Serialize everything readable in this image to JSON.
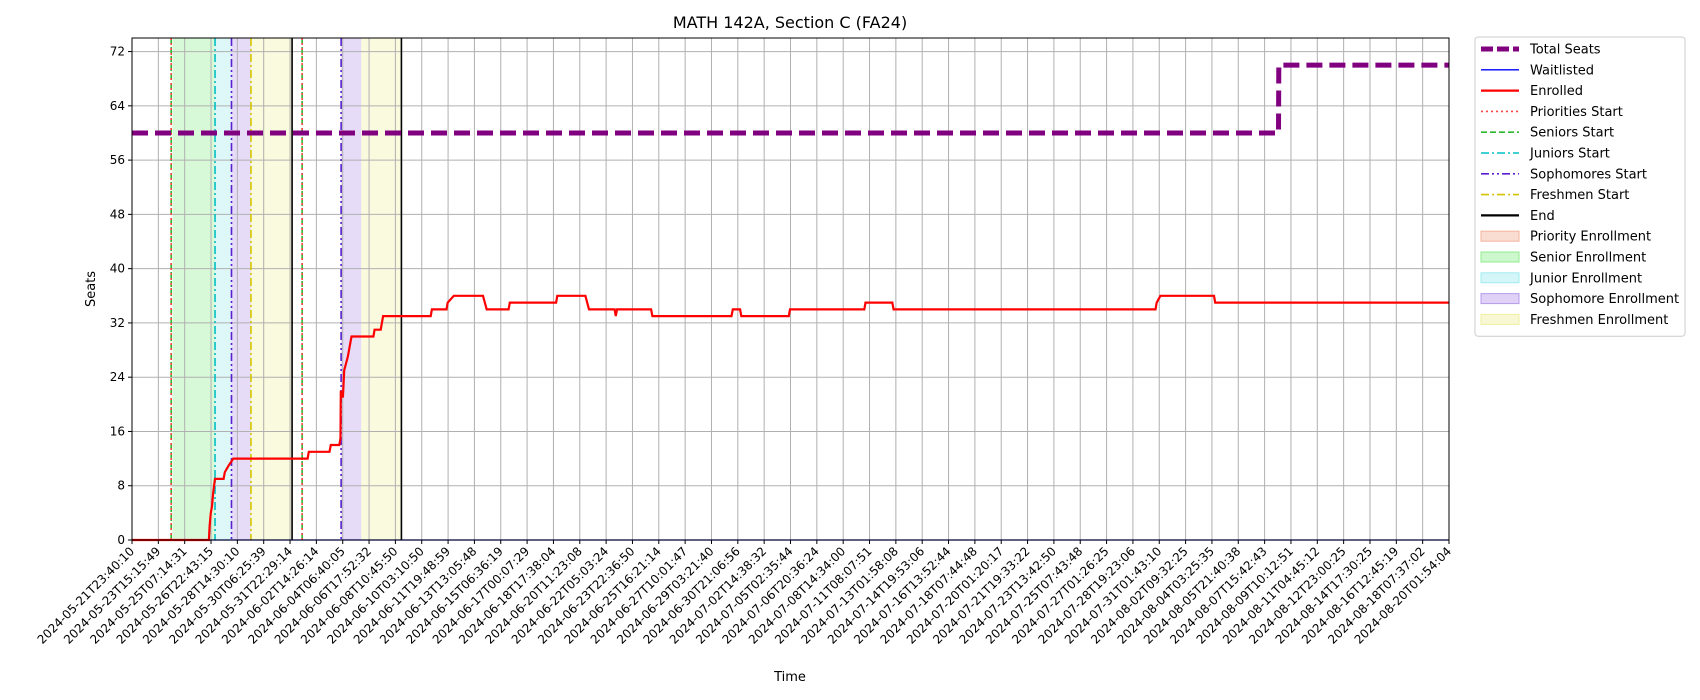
{
  "chart_data": {
    "type": "line",
    "title": "MATH 142A, Section C (FA24)",
    "xlabel": "Time",
    "ylabel": "Seats",
    "xlim": [
      "2024-05-21T23:40:10",
      "2024-08-20T01:54:04"
    ],
    "ylim": [
      0,
      74
    ],
    "yticks": [
      0,
      8,
      16,
      24,
      32,
      40,
      48,
      56,
      64,
      72
    ],
    "xtick_labels": [
      "2024-05-21T23:40:10",
      "2024-05-23T15:15:49",
      "2024-05-25T07:14:31",
      "2024-05-26T22:43:15",
      "2024-05-28T14:30:10",
      "2024-05-30T06:25:39",
      "2024-05-31T22:29:14",
      "2024-06-02T14:26:14",
      "2024-06-04T06:40:05",
      "2024-06-06T17:52:32",
      "2024-06-08T10:45:50",
      "2024-06-10T03:10:50",
      "2024-06-11T19:48:59",
      "2024-06-13T13:05:48",
      "2024-06-15T06:36:19",
      "2024-06-17T00:07:29",
      "2024-06-18T17:38:04",
      "2024-06-20T11:23:08",
      "2024-06-22T05:03:24",
      "2024-06-23T22:36:50",
      "2024-06-25T16:21:14",
      "2024-06-27T10:01:47",
      "2024-06-29T03:21:40",
      "2024-06-30T21:06:56",
      "2024-07-02T14:38:32",
      "2024-07-05T02:35:44",
      "2024-07-06T20:36:24",
      "2024-07-08T14:34:00",
      "2024-07-11T08:07:51",
      "2024-07-13T01:58:08",
      "2024-07-14T19:53:06",
      "2024-07-16T13:52:44",
      "2024-07-18T07:44:48",
      "2024-07-20T01:20:17",
      "2024-07-21T19:33:22",
      "2024-07-23T13:42:50",
      "2024-07-25T07:43:48",
      "2024-07-27T01:26:25",
      "2024-07-28T19:23:06",
      "2024-07-31T01:43:10",
      "2024-08-02T09:32:25",
      "2024-08-04T03:25:35",
      "2024-08-05T21:40:38",
      "2024-08-07T15:42:43",
      "2024-08-09T10:12:51",
      "2024-08-11T04:45:12",
      "2024-08-12T23:00:25",
      "2024-08-14T17:30:25",
      "2024-08-16T12:45:19",
      "2024-08-18T07:37:02",
      "2024-08-20T01:54:04"
    ],
    "grid": true,
    "legend_placement": "outside-upper-right",
    "series": [
      {
        "name": "Total Seats",
        "color": "#800080",
        "style": "dashed-thick",
        "points": [
          [
            "2024-05-21T23:40:10",
            60
          ],
          [
            "2024-08-08T10:00:00",
            60
          ],
          [
            "2024-08-08T10:30:00",
            70
          ],
          [
            "2024-08-20T01:54:04",
            70
          ]
        ]
      },
      {
        "name": "Waitlisted",
        "color": "#0000ff",
        "style": "solid-thin",
        "points": [
          [
            "2024-05-21T23:40:10",
            0
          ],
          [
            "2024-08-20T01:54:04",
            0
          ]
        ]
      },
      {
        "name": "Enrolled",
        "color": "#ff0000",
        "style": "solid",
        "points": [
          [
            "2024-05-21T23:40:10",
            0
          ],
          [
            "2024-05-27T06:00:00",
            0
          ],
          [
            "2024-05-27T07:00:00",
            2
          ],
          [
            "2024-05-27T09:00:00",
            4
          ],
          [
            "2024-05-27T11:00:00",
            5
          ],
          [
            "2024-05-27T13:00:00",
            7
          ],
          [
            "2024-05-27T16:00:00",
            9
          ],
          [
            "2024-05-28T06:00:00",
            9
          ],
          [
            "2024-05-28T08:00:00",
            10
          ],
          [
            "2024-05-28T14:30:00",
            11
          ],
          [
            "2024-05-28T22:00:00",
            12
          ],
          [
            "2024-06-03T00:00:00",
            12
          ],
          [
            "2024-06-03T02:00:00",
            13
          ],
          [
            "2024-06-04T12:00:00",
            13
          ],
          [
            "2024-06-04T14:00:00",
            14
          ],
          [
            "2024-06-05T04:00:00",
            14
          ],
          [
            "2024-06-05T06:00:00",
            15
          ],
          [
            "2024-06-05T06:30:00",
            22
          ],
          [
            "2024-06-05T10:00:00",
            21
          ],
          [
            "2024-06-05T12:00:00",
            25
          ],
          [
            "2024-06-05T18:00:00",
            27
          ],
          [
            "2024-06-06T00:00:00",
            30
          ],
          [
            "2024-06-07T12:00:00",
            30
          ],
          [
            "2024-06-07T14:00:00",
            31
          ],
          [
            "2024-06-08T00:00:00",
            31
          ],
          [
            "2024-06-08T04:00:00",
            33
          ],
          [
            "2024-06-11T10:00:00",
            33
          ],
          [
            "2024-06-11T12:00:00",
            34
          ],
          [
            "2024-06-12T12:00:00",
            34
          ],
          [
            "2024-06-12T14:00:00",
            35
          ],
          [
            "2024-06-13T00:00:00",
            36
          ],
          [
            "2024-06-15T00:00:00",
            36
          ],
          [
            "2024-06-15T06:00:00",
            34
          ],
          [
            "2024-06-16T18:00:00",
            34
          ],
          [
            "2024-06-16T20:00:00",
            35
          ],
          [
            "2024-06-20T00:00:00",
            35
          ],
          [
            "2024-06-20T02:00:00",
            36
          ],
          [
            "2024-06-22T00:00:00",
            36
          ],
          [
            "2024-06-22T06:00:00",
            34
          ],
          [
            "2024-06-24T00:00:00",
            34
          ],
          [
            "2024-06-24T02:00:00",
            33
          ],
          [
            "2024-06-24T04:00:00",
            34
          ],
          [
            "2024-06-26T12:00:00",
            34
          ],
          [
            "2024-06-26T14:00:00",
            33
          ],
          [
            "2024-07-02T00:00:00",
            33
          ],
          [
            "2024-07-02T02:00:00",
            34
          ],
          [
            "2024-07-02T14:00:00",
            34
          ],
          [
            "2024-07-02T16:00:00",
            33
          ],
          [
            "2024-07-05T22:00:00",
            33
          ],
          [
            "2024-07-06T00:00:00",
            34
          ],
          [
            "2024-07-11T02:00:00",
            34
          ],
          [
            "2024-07-11T04:00:00",
            35
          ],
          [
            "2024-07-13T00:00:00",
            35
          ],
          [
            "2024-07-13T02:00:00",
            34
          ],
          [
            "2024-07-31T00:00:00",
            34
          ],
          [
            "2024-07-31T02:00:00",
            35
          ],
          [
            "2024-07-31T08:00:00",
            36
          ],
          [
            "2024-08-04T00:00:00",
            36
          ],
          [
            "2024-08-04T02:00:00",
            35
          ],
          [
            "2024-08-20T01:54:04",
            35
          ]
        ]
      }
    ],
    "vertical_lines": [
      {
        "name": "Seniors Start",
        "x": "2024-05-24T16:00:00",
        "color": "#2db82d",
        "style": "dashed"
      },
      {
        "name": "Priorities Start",
        "x": "2024-05-24T16:00:00",
        "color": "#ff4444",
        "style": "dotted"
      },
      {
        "name": "Juniors Start",
        "x": "2024-05-27T16:00:00",
        "color": "#00bfc4",
        "style": "dashdot"
      },
      {
        "name": "Sophomores Start",
        "x": "2024-05-28T19:00:00",
        "color": "#5a1fd1",
        "style": "dashdotdot"
      },
      {
        "name": "Freshmen Start",
        "x": "2024-05-30T03:00:00",
        "color": "#d4c400",
        "style": "dashdot"
      },
      {
        "name": "End",
        "x": "2024-06-01T22:30:00",
        "color": "#000000",
        "style": "solid"
      },
      {
        "name": "Seniors Start",
        "x": "2024-06-02T15:00:00",
        "color": "#2db82d",
        "style": "dashed"
      },
      {
        "name": "Priorities Start",
        "x": "2024-06-02T15:00:00",
        "color": "#ff4444",
        "style": "dotted"
      },
      {
        "name": "Sophomores Start",
        "x": "2024-06-05T07:00:00",
        "color": "#5a1fd1",
        "style": "dashdotdot"
      },
      {
        "name": "End",
        "x": "2024-06-09T10:00:00",
        "color": "#000000",
        "style": "solid"
      }
    ],
    "shaded_regions": [
      {
        "name": "Senior Enrollment",
        "from": "2024-05-24T18:00:00",
        "to": "2024-05-27T16:00:00",
        "color": "#90ee90"
      },
      {
        "name": "Junior Enrollment",
        "from": "2024-05-27T16:00:00",
        "to": "2024-05-28T19:00:00",
        "color": "#a0ecf0"
      },
      {
        "name": "Sophomore Enrollment",
        "from": "2024-05-28T19:00:00",
        "to": "2024-05-30T03:00:00",
        "color": "#b79cec"
      },
      {
        "name": "Freshmen Enrollment",
        "from": "2024-05-30T03:00:00",
        "to": "2024-06-01T22:30:00",
        "color": "#f0f0a0"
      },
      {
        "name": "Sophomore Enrollment",
        "from": "2024-06-05T07:00:00",
        "to": "2024-06-06T16:00:00",
        "color": "#b79cec"
      },
      {
        "name": "Freshmen Enrollment",
        "from": "2024-06-06T16:00:00",
        "to": "2024-06-09T10:00:00",
        "color": "#f0f0a0"
      }
    ],
    "legend": [
      {
        "label": "Total Seats",
        "kind": "line",
        "color": "#800080",
        "style": "dashed-thick"
      },
      {
        "label": "Waitlisted",
        "kind": "line",
        "color": "#0000ff",
        "style": "solid-thin"
      },
      {
        "label": "Enrolled",
        "kind": "line",
        "color": "#ff0000",
        "style": "solid"
      },
      {
        "label": "Priorities Start",
        "kind": "line",
        "color": "#ff4444",
        "style": "dotted"
      },
      {
        "label": "Seniors Start",
        "kind": "line",
        "color": "#2db82d",
        "style": "dashed"
      },
      {
        "label": "Juniors Start",
        "kind": "line",
        "color": "#00bfc4",
        "style": "dashdot"
      },
      {
        "label": "Sophomores Start",
        "kind": "line",
        "color": "#5a1fd1",
        "style": "dashdotdot"
      },
      {
        "label": "Freshmen Start",
        "kind": "line",
        "color": "#d4c400",
        "style": "dashdot"
      },
      {
        "label": "End",
        "kind": "line",
        "color": "#000000",
        "style": "solid"
      },
      {
        "label": "Priority Enrollment",
        "kind": "patch",
        "color": "#f4b39c"
      },
      {
        "label": "Senior Enrollment",
        "kind": "patch",
        "color": "#90ee90"
      },
      {
        "label": "Junior Enrollment",
        "kind": "patch",
        "color": "#a0ecf0"
      },
      {
        "label": "Sophomore Enrollment",
        "kind": "patch",
        "color": "#b79cec"
      },
      {
        "label": "Freshmen Enrollment",
        "kind": "patch",
        "color": "#f0f0a0"
      }
    ]
  }
}
